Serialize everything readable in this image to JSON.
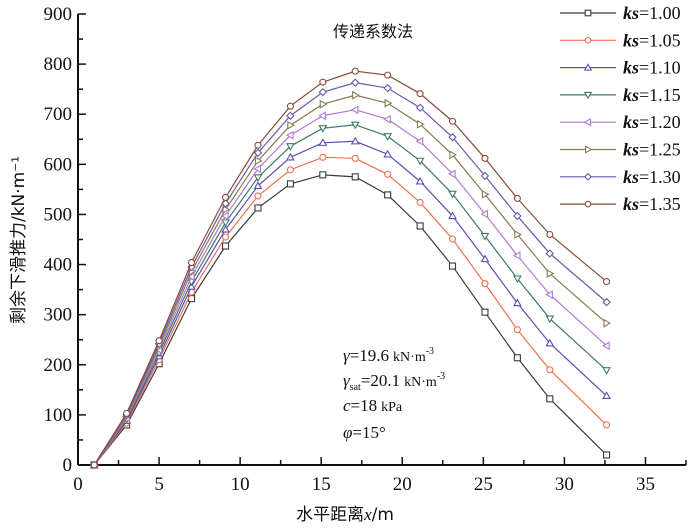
{
  "chart_data": {
    "type": "line",
    "title": "传递系数法",
    "xlabel": "水平距离x/m",
    "ylabel": "剩余下滑推力/kN·m⁻¹",
    "xlim": [
      0,
      37.5
    ],
    "ylim": [
      0,
      900
    ],
    "xticks": [
      0,
      5,
      10,
      15,
      20,
      25,
      30,
      35
    ],
    "yticks": [
      0,
      100,
      200,
      300,
      400,
      500,
      600,
      700,
      800,
      900
    ],
    "xtick_labels": [
      "0",
      "5",
      "10",
      "15",
      "20",
      "25",
      "30",
      "35"
    ],
    "ytick_labels": [
      "0",
      "100",
      "200",
      "300",
      "400",
      "500",
      "600",
      "700",
      "800",
      "900"
    ],
    "grid": false,
    "legend_position": "top-right",
    "x": [
      1.0,
      3.0,
      5.0,
      7.0,
      9.1,
      11.1,
      13.1,
      15.1,
      17.1,
      19.1,
      21.1,
      23.1,
      25.1,
      27.1,
      29.1,
      32.6
    ],
    "series": [
      {
        "name": "ks=1.00",
        "prefix": "ks",
        "value": "=1.00",
        "color": "#3a3a3a",
        "marker": "square",
        "values": [
          0,
          80,
          202,
          332,
          437,
          513,
          561,
          579,
          575,
          539,
          477,
          397,
          305,
          214,
          132,
          20
        ]
      },
      {
        "name": "ks=1.05",
        "prefix": "ks",
        "value": "=1.05",
        "color": "#f07050",
        "marker": "circle",
        "values": [
          0,
          84,
          210,
          345,
          455,
          537,
          589,
          614,
          612,
          580,
          524,
          451,
          362,
          270,
          190,
          80
        ]
      },
      {
        "name": "ks=1.10",
        "prefix": "ks",
        "value": "=1.10",
        "color": "#5a50b0",
        "marker": "triangle-up",
        "values": [
          0,
          88,
          217,
          356,
          470,
          557,
          614,
          643,
          646,
          620,
          566,
          497,
          411,
          323,
          243,
          138
        ]
      },
      {
        "name": "ks=1.15",
        "prefix": "ks",
        "value": "=1.15",
        "color": "#3f7a62",
        "marker": "triangle-down",
        "values": [
          0,
          91,
          224,
          366,
          484,
          574,
          636,
          672,
          679,
          656,
          607,
          541,
          457,
          372,
          292,
          189
        ]
      },
      {
        "name": "ks=1.20",
        "prefix": "ks",
        "value": "=1.20",
        "color": "#b07ad0",
        "marker": "triangle-left",
        "values": [
          0,
          94,
          230,
          376,
          497,
          591,
          658,
          697,
          709,
          690,
          646,
          581,
          501,
          418,
          340,
          238
        ]
      },
      {
        "name": "ks=1.25",
        "prefix": "ks",
        "value": "=1.25",
        "color": "#8a7a50",
        "marker": "triangle-right",
        "values": [
          0,
          97,
          236,
          386,
          510,
          607,
          678,
          720,
          738,
          722,
          680,
          619,
          540,
          460,
          382,
          283
        ]
      },
      {
        "name": "ks=1.30",
        "prefix": "ks",
        "value": "=1.30",
        "color": "#6a58a8",
        "marker": "diamond",
        "values": [
          0,
          100,
          242,
          395,
          522,
          623,
          697,
          744,
          763,
          752,
          713,
          654,
          577,
          497,
          422,
          325
        ]
      },
      {
        "name": "ks=1.35",
        "prefix": "ks",
        "value": "=1.35",
        "color": "#8a4a38",
        "marker": "circle",
        "values": [
          0,
          103,
          248,
          404,
          534,
          638,
          716,
          764,
          786,
          778,
          741,
          686,
          612,
          532,
          460,
          366
        ]
      }
    ],
    "annotations": {
      "gamma": {
        "sym": "γ",
        "text": "=19.6",
        "unit": "kN·m",
        "sup": "-3"
      },
      "gamma_sat": {
        "sym": "γ",
        "sub": "sat",
        "text": "=20.1",
        "unit": "kN·m",
        "sup": "-3"
      },
      "c": {
        "sym": "c",
        "text": "=18",
        "unit": "kPa"
      },
      "phi": {
        "sym": "φ",
        "text": "=15°"
      }
    }
  }
}
